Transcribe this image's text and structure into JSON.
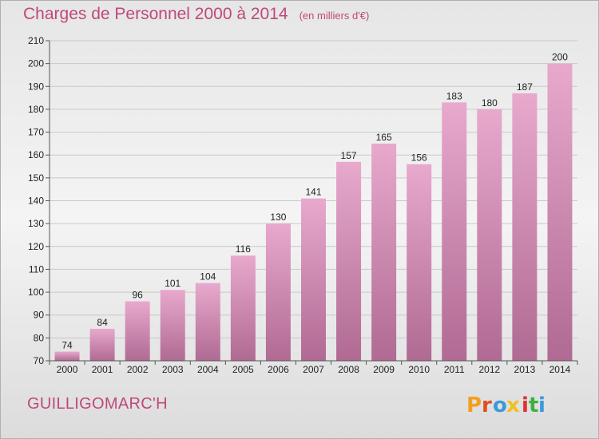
{
  "header": {
    "title": "Charges de Personnel 2000 à 2014",
    "subtitle": "(en milliers d'€)"
  },
  "footer": {
    "place": "GUILLIGOMARC'H",
    "brand": "Proxiti"
  },
  "colors": {
    "title": "#c0487a",
    "bar_top": "#e8a9cd",
    "bar_bottom": "#b06a93",
    "logo": [
      "#f0a020",
      "#e05020",
      "#3a9ad9",
      "#f0c020",
      "#e03030",
      "#40b040",
      "#3a9ad9"
    ]
  },
  "chart_data": {
    "type": "bar",
    "categories": [
      "2000",
      "2001",
      "2002",
      "2003",
      "2004",
      "2005",
      "2006",
      "2007",
      "2008",
      "2009",
      "2010",
      "2011",
      "2012",
      "2013",
      "2014"
    ],
    "values": [
      74,
      84,
      96,
      101,
      104,
      116,
      130,
      141,
      157,
      165,
      156,
      183,
      180,
      187,
      200
    ],
    "ylim": [
      70,
      210
    ],
    "yticks": [
      70,
      80,
      90,
      100,
      110,
      120,
      130,
      140,
      150,
      160,
      170,
      180,
      190,
      200,
      210
    ],
    "grid": true,
    "data_labels": true
  }
}
